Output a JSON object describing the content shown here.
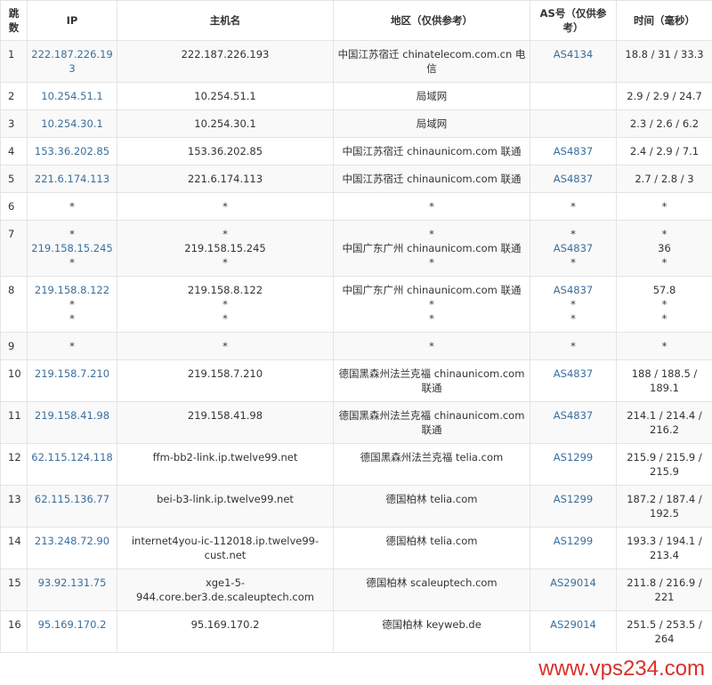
{
  "headers": {
    "hop": "跳数",
    "ip": "IP",
    "host": "主机名",
    "region": "地区（仅供参考）",
    "as": "AS号（仅供参考）",
    "time": "时间（毫秒）"
  },
  "rows": [
    {
      "hop": "1",
      "ip": [
        "222.187.226.193"
      ],
      "host": [
        "222.187.226.193"
      ],
      "region": [
        "中国江苏宿迁 chinatelecom.com.cn 电信"
      ],
      "as": [
        "AS4134"
      ],
      "time": [
        "18.8 / 31 / 33.3"
      ]
    },
    {
      "hop": "2",
      "ip": [
        "10.254.51.1"
      ],
      "host": [
        "10.254.51.1"
      ],
      "region": [
        "局域网"
      ],
      "as": [
        ""
      ],
      "time": [
        "2.9 / 2.9 / 24.7"
      ]
    },
    {
      "hop": "3",
      "ip": [
        "10.254.30.1"
      ],
      "host": [
        "10.254.30.1"
      ],
      "region": [
        "局域网"
      ],
      "as": [
        ""
      ],
      "time": [
        "2.3 / 2.6 / 6.2"
      ]
    },
    {
      "hop": "4",
      "ip": [
        "153.36.202.85"
      ],
      "host": [
        "153.36.202.85"
      ],
      "region": [
        "中国江苏宿迁 chinaunicom.com 联通"
      ],
      "as": [
        "AS4837"
      ],
      "time": [
        "2.4 / 2.9 / 7.1"
      ]
    },
    {
      "hop": "5",
      "ip": [
        "221.6.174.113"
      ],
      "host": [
        "221.6.174.113"
      ],
      "region": [
        "中国江苏宿迁 chinaunicom.com 联通"
      ],
      "as": [
        "AS4837"
      ],
      "time": [
        "2.7 / 2.8 / 3"
      ]
    },
    {
      "hop": "6",
      "ip": [
        "*"
      ],
      "host": [
        "*"
      ],
      "region": [
        "*"
      ],
      "as": [
        "*"
      ],
      "time": [
        "*"
      ]
    },
    {
      "hop": "7",
      "ip": [
        "*",
        "219.158.15.245",
        "*"
      ],
      "host": [
        "*",
        "219.158.15.245",
        "*"
      ],
      "region": [
        "*",
        "中国广东广州 chinaunicom.com 联通",
        "*"
      ],
      "as": [
        "*",
        "AS4837",
        "*"
      ],
      "time": [
        "*",
        "36",
        "*"
      ]
    },
    {
      "hop": "8",
      "ip": [
        "219.158.8.122",
        "*",
        "*"
      ],
      "host": [
        "219.158.8.122",
        "*",
        "*"
      ],
      "region": [
        "中国广东广州 chinaunicom.com 联通",
        "*",
        "*"
      ],
      "as": [
        "AS4837",
        "*",
        "*"
      ],
      "time": [
        "57.8",
        "*",
        "*"
      ]
    },
    {
      "hop": "9",
      "ip": [
        "*"
      ],
      "host": [
        "*"
      ],
      "region": [
        "*"
      ],
      "as": [
        "*"
      ],
      "time": [
        "*"
      ]
    },
    {
      "hop": "10",
      "ip": [
        "219.158.7.210"
      ],
      "host": [
        "219.158.7.210"
      ],
      "region": [
        "德国黑森州法兰克福 chinaunicom.com 联通"
      ],
      "as": [
        "AS4837"
      ],
      "time": [
        "188 / 188.5 / 189.1"
      ]
    },
    {
      "hop": "11",
      "ip": [
        "219.158.41.98"
      ],
      "host": [
        "219.158.41.98"
      ],
      "region": [
        "德国黑森州法兰克福 chinaunicom.com 联通"
      ],
      "as": [
        "AS4837"
      ],
      "time": [
        "214.1 / 214.4 / 216.2"
      ]
    },
    {
      "hop": "12",
      "ip": [
        "62.115.124.118"
      ],
      "host": [
        "ffm-bb2-link.ip.twelve99.net"
      ],
      "region": [
        "德国黑森州法兰克福 telia.com"
      ],
      "as": [
        "AS1299"
      ],
      "time": [
        "215.9 / 215.9 / 215.9"
      ]
    },
    {
      "hop": "13",
      "ip": [
        "62.115.136.77"
      ],
      "host": [
        "bei-b3-link.ip.twelve99.net"
      ],
      "region": [
        "德国柏林 telia.com"
      ],
      "as": [
        "AS1299"
      ],
      "time": [
        "187.2 / 187.4 / 192.5"
      ]
    },
    {
      "hop": "14",
      "ip": [
        "213.248.72.90"
      ],
      "host": [
        "internet4you-ic-112018.ip.twelve99-cust.net"
      ],
      "region": [
        "德国柏林 telia.com"
      ],
      "as": [
        "AS1299"
      ],
      "time": [
        "193.3 / 194.1 / 213.4"
      ]
    },
    {
      "hop": "15",
      "ip": [
        "93.92.131.75"
      ],
      "host": [
        "xge1-5-944.core.ber3.de.scaleuptech.com"
      ],
      "region": [
        "德国柏林 scaleuptech.com"
      ],
      "as": [
        "AS29014"
      ],
      "time": [
        "211.8 / 216.9 / 221"
      ]
    },
    {
      "hop": "16",
      "ip": [
        "95.169.170.2"
      ],
      "host": [
        "95.169.170.2"
      ],
      "region": [
        "德国柏林 keyweb.de"
      ],
      "as": [
        "AS29014"
      ],
      "time": [
        "251.5 / 253.5 / 264"
      ]
    }
  ],
  "watermark": "www.vps234.com",
  "colors": {
    "link": "#3a6f9e",
    "watermark": "#d9302a",
    "stripe": "#f9f9f9"
  }
}
